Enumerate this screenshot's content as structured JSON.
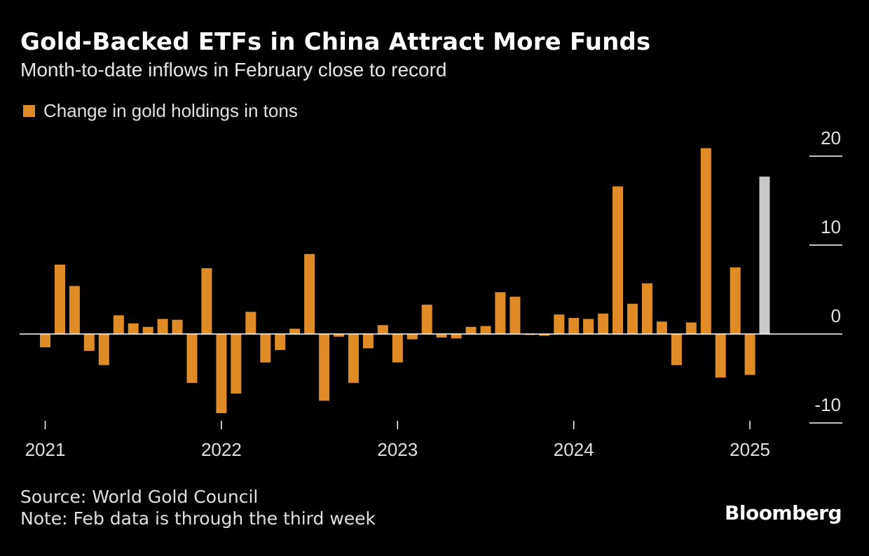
{
  "header": {
    "title": "Gold-Backed ETFs in China Attract More Funds",
    "subtitle": "Month-to-date inflows in February close to record"
  },
  "legend": {
    "label": "Change in gold holdings in tons"
  },
  "footer": {
    "source": "Source: World Gold Council",
    "note": "Note: Feb data is through the third week",
    "brand": "Bloomberg"
  },
  "colors": {
    "bar": "#e08c26",
    "highlight": "#c8c8c8",
    "background": "#000000",
    "axis": "#ffffff"
  },
  "chart_data": {
    "type": "bar",
    "title": "Gold-Backed ETFs in China Attract More Funds",
    "subtitle": "Month-to-date inflows in February close to record",
    "ylim": [
      -10,
      20
    ],
    "yticks": [
      20,
      10,
      0,
      -10
    ],
    "ytick_labels": [
      "20",
      "10",
      "0",
      "-10"
    ],
    "y_axis_position": "right",
    "grid": false,
    "legend_position": "top-left",
    "x_labels": [
      "2021",
      "2022",
      "2023",
      "2024",
      "2025"
    ],
    "x_label_index": [
      0,
      12,
      24,
      36,
      48
    ],
    "highlight_index": 49,
    "categories": [
      "Jan 2021",
      "Feb 2021",
      "Mar 2021",
      "Apr 2021",
      "May 2021",
      "Jun 2021",
      "Jul 2021",
      "Aug 2021",
      "Sep 2021",
      "Oct 2021",
      "Nov 2021",
      "Dec 2021",
      "Jan 2022",
      "Feb 2022",
      "Mar 2022",
      "Apr 2022",
      "May 2022",
      "Jun 2022",
      "Jul 2022",
      "Aug 2022",
      "Sep 2022",
      "Oct 2022",
      "Nov 2022",
      "Dec 2022",
      "Jan 2023",
      "Feb 2023",
      "Mar 2023",
      "Apr 2023",
      "May 2023",
      "Jun 2023",
      "Jul 2023",
      "Aug 2023",
      "Sep 2023",
      "Oct 2023",
      "Nov 2023",
      "Dec 2023",
      "Jan 2024",
      "Feb 2024",
      "Mar 2024",
      "Apr 2024",
      "May 2024",
      "Jun 2024",
      "Jul 2024",
      "Aug 2024",
      "Sep 2024",
      "Oct 2024",
      "Nov 2024",
      "Dec 2024",
      "Jan 2025",
      "Feb 2025"
    ],
    "series": [
      {
        "name": "Change in gold holdings in tons",
        "values": [
          -1.5,
          7.8,
          5.4,
          -1.9,
          -3.5,
          2.1,
          1.2,
          0.8,
          1.7,
          1.6,
          -5.5,
          7.4,
          -8.9,
          -6.7,
          2.5,
          -3.2,
          -1.8,
          0.6,
          9.0,
          -7.5,
          -0.3,
          -5.5,
          -1.6,
          1.0,
          -3.2,
          -0.6,
          3.3,
          -0.4,
          -0.5,
          0.8,
          0.9,
          4.7,
          4.2,
          -0.1,
          -0.2,
          2.2,
          1.8,
          1.7,
          2.3,
          16.6,
          3.4,
          5.7,
          1.4,
          -3.5,
          1.3,
          20.9,
          -4.9,
          7.5,
          -4.6,
          17.7
        ]
      }
    ]
  }
}
